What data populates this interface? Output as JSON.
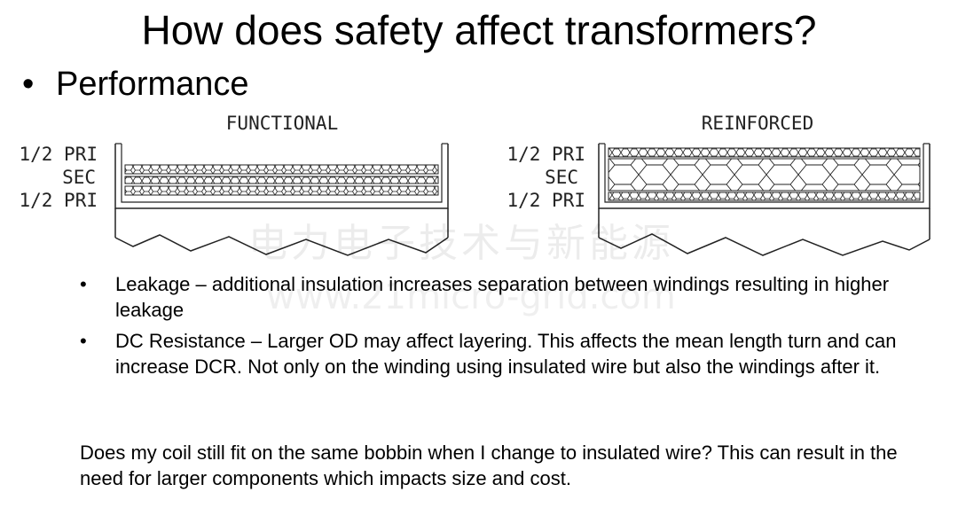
{
  "slide": {
    "title": "How does safety affect transformers?",
    "top_bullet": "Performance",
    "bullet_glyph": "•"
  },
  "figure": {
    "left_diagram": {
      "caption": "FUNCTIONAL",
      "labels": [
        "1/2 PRI",
        "SEC",
        "1/2 PRI"
      ]
    },
    "right_diagram": {
      "caption": "REINFORCED",
      "labels": [
        "1/2 PRI",
        "SEC",
        "1/2 PRI"
      ]
    },
    "watermark_cn": "电力电子技术与新能源",
    "watermark_url": "www.21micro-grid.com"
  },
  "bullets": [
    {
      "text": "Leakage – additional insulation increases separation between windings resulting in higher leakage"
    },
    {
      "text": "DC Resistance – Larger OD may affect layering. This affects the mean length turn and can increase DCR. Not only on the winding using insulated wire but also the windings after it."
    }
  ],
  "footer": {
    "text": "Does my coil still fit on the same bobbin when I change to insulated wire? This can result in the need for larger components which impacts size and cost."
  }
}
